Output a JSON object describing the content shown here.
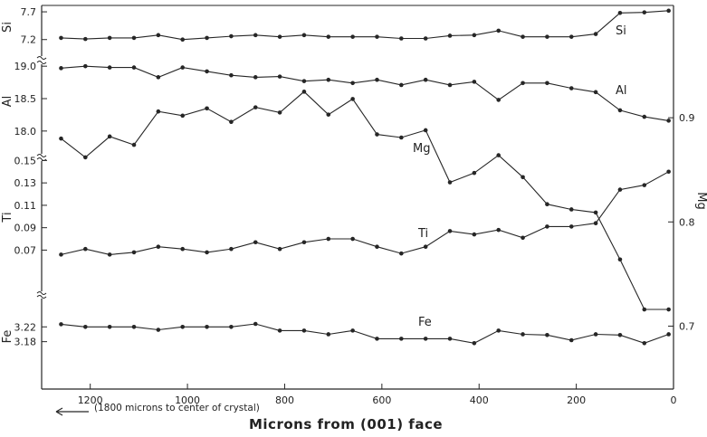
{
  "chart_data": {
    "type": "line",
    "xlabel": "Microns from (001) face",
    "note": "(1800 microns to center of crystal)",
    "x_ticks": [
      1200,
      1000,
      800,
      600,
      400,
      200,
      0
    ],
    "x_range": [
      1300,
      0
    ],
    "x": [
      1260,
      1210,
      1160,
      1110,
      1060,
      1010,
      960,
      910,
      860,
      810,
      760,
      710,
      660,
      610,
      560,
      510,
      460,
      410,
      360,
      310,
      260,
      210,
      160,
      110,
      60,
      10
    ],
    "bands": [
      {
        "key": "si",
        "axis_label": "Si",
        "ticks": [
          7.7,
          7.2
        ],
        "range": [
          7.0,
          7.75
        ]
      },
      {
        "key": "al",
        "axis_label": "Al",
        "ticks": [
          19.0,
          18.5,
          18.0
        ],
        "range": [
          17.9,
          19.1
        ]
      },
      {
        "key": "ti",
        "axis_label": "Ti",
        "ticks": [
          0.15,
          0.13,
          0.11,
          0.09,
          0.07
        ],
        "range": [
          0.055,
          0.16
        ]
      },
      {
        "key": "fe",
        "axis_label": "Fe",
        "ticks": [
          3.22,
          3.18
        ],
        "range": [
          3.14,
          3.25
        ]
      }
    ],
    "right_axis": {
      "axis_label": "Mg",
      "ticks": [
        0.9,
        0.8,
        0.7
      ],
      "range": [
        0.67,
        0.98
      ]
    },
    "series": [
      {
        "name": "Si",
        "axis": "si",
        "values": [
          7.23,
          7.21,
          7.23,
          7.23,
          7.28,
          7.2,
          7.23,
          7.26,
          7.28,
          7.25,
          7.28,
          7.25,
          7.25,
          7.25,
          7.22,
          7.22,
          7.27,
          7.28,
          7.36,
          7.25,
          7.25,
          7.25,
          7.3,
          7.68,
          7.69,
          7.72
        ]
      },
      {
        "name": "Al",
        "axis": "al",
        "values": [
          18.97,
          19.0,
          18.98,
          18.98,
          18.83,
          18.98,
          18.92,
          18.86,
          18.83,
          18.84,
          18.77,
          18.79,
          18.74,
          18.79,
          18.71,
          18.79,
          18.71,
          18.76,
          18.48,
          18.74,
          18.74,
          18.66,
          18.6,
          18.32,
          18.22,
          18.16
        ]
      },
      {
        "name": "Mg",
        "axis": "mg",
        "values": [
          0.88,
          0.862,
          0.882,
          0.874,
          0.906,
          0.902,
          0.909,
          0.896,
          0.91,
          0.905,
          0.925,
          0.903,
          0.918,
          0.884,
          0.881,
          0.888,
          0.838,
          0.847,
          0.864,
          0.843,
          0.817,
          0.812,
          0.809,
          0.764,
          0.716,
          0.716
        ]
      },
      {
        "name": "Ti",
        "axis": "ti",
        "values": [
          0.066,
          0.071,
          0.066,
          0.068,
          0.073,
          0.071,
          0.068,
          0.071,
          0.077,
          0.071,
          0.077,
          0.08,
          0.08,
          0.073,
          0.067,
          0.073,
          0.087,
          0.084,
          0.088,
          0.081,
          0.091,
          0.091,
          0.094,
          0.124,
          0.128,
          0.14
        ]
      },
      {
        "name": "Fe",
        "axis": "fe",
        "values": [
          3.227,
          3.22,
          3.22,
          3.22,
          3.212,
          3.22,
          3.22,
          3.22,
          3.228,
          3.21,
          3.21,
          3.2,
          3.21,
          3.188,
          3.188,
          3.188,
          3.188,
          3.176,
          3.21,
          3.2,
          3.198,
          3.184,
          3.2,
          3.198,
          3.176,
          3.2
        ]
      }
    ],
    "grid": false
  }
}
